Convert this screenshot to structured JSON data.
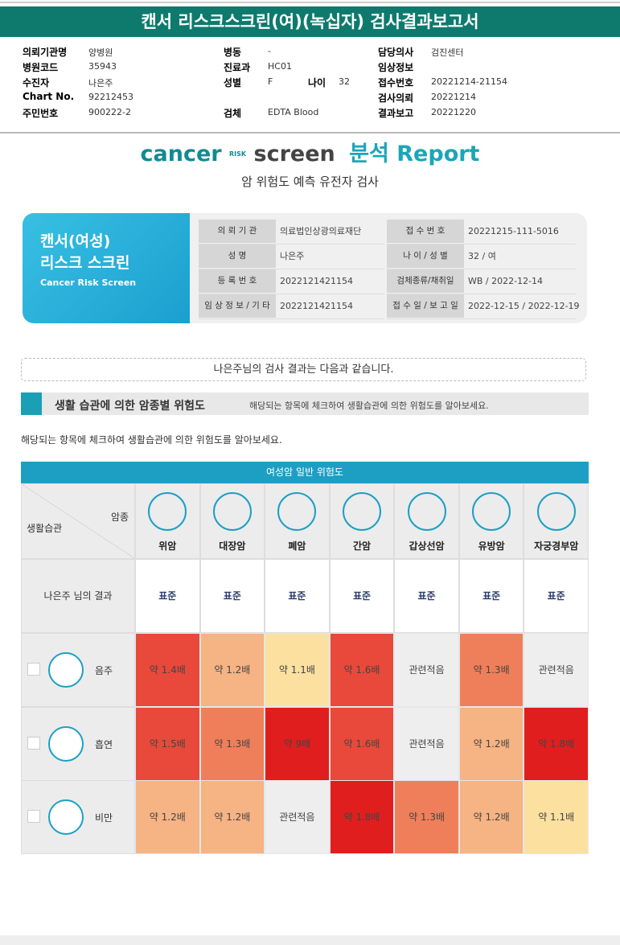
{
  "header": {
    "title": "캔서 리스크스크린(여)(녹십자) 검사결과보고서"
  },
  "info": {
    "columns": [
      [
        {
          "label": "의뢰기관명",
          "value": "양병원"
        },
        {
          "label": "병원코드",
          "value": "35943"
        },
        {
          "label": "수진자",
          "value": "나은주"
        },
        {
          "label": "Chart No.",
          "value": "92212453"
        },
        {
          "label": "주민번호",
          "value": "900222-2"
        }
      ],
      [
        {
          "label": "병동",
          "value": "-"
        },
        {
          "label": "진료과",
          "value": "HC01"
        },
        {
          "label": "성별",
          "value": "F"
        },
        {
          "label": "검체",
          "value": "EDTA Blood"
        }
      ],
      [
        {
          "label": "담당의사",
          "value": "검진센터"
        },
        {
          "label": "임상정보"
        },
        {
          "label": "접수번호",
          "value": "20221214-21154"
        },
        {
          "label": "검사의뢰",
          "value": "20221214"
        },
        {
          "label": "결과보고",
          "value": "20221220"
        }
      ]
    ],
    "age": {
      "label": "나이",
      "value": "32"
    }
  },
  "report": {
    "logo": {
      "cancer": "cancer",
      "risk": "RISK",
      "screen": "screen",
      "report": "분석 Report"
    },
    "subtitle": "암 위험도 예측 유전자 검사",
    "card": {
      "title1": "캔서(여성)",
      "title2": "리스크 스크린",
      "title3": "Cancer Risk Screen",
      "fields": [
        [
          {
            "label": "의 뢰 기 관",
            "value": "의료법인상광의료재단"
          },
          {
            "label": "접 수 번 호",
            "value": "20221215-111-5016"
          }
        ],
        [
          {
            "label": "성 명",
            "value": "나은주"
          },
          {
            "label": "나 이 / 성 별",
            "value": "32 / 여"
          }
        ],
        [
          {
            "label": "등 록 번 호",
            "value": "2022121421154"
          },
          {
            "label": "검체종류/채취일",
            "value": "WB / 2022-12-14"
          }
        ],
        [
          {
            "label": "임 상 정 보 / 기 타",
            "value": "2022121421154"
          },
          {
            "label": "접 수 일 / 보 고 일",
            "value": "2022-12-15 / 2022-12-19"
          }
        ]
      ]
    },
    "notice": "나은주님의 검사 결과는 다음과 같습니다.",
    "section": {
      "title": "생활 습관에 의한 암종별 위험도",
      "hint": "해당되는 항목에 체크하여 생활습관에 의한 위험도를 알아보세요."
    },
    "paragraph": "해당되는 항목에 체크하여 생활습관에 의한 위험도를 알아보세요."
  },
  "table": {
    "caption": "여성암 일반 위험도",
    "corner_top": "암종",
    "corner_bottom": "생활습관",
    "columns": [
      "위암",
      "대장암",
      "폐암",
      "간암",
      "갑상선암",
      "유방암",
      "자궁경부암"
    ],
    "result": {
      "label": "나은주 님의 결과",
      "values": [
        "표준",
        "표준",
        "표준",
        "표준",
        "표준",
        "표준",
        "표준"
      ]
    },
    "rows": [
      {
        "label": "음주",
        "values": [
          "약 1.4배",
          "약 1.2배",
          "약 1.1배",
          "약 1.6배",
          "관련적음",
          "약 1.3배",
          "관련적음"
        ],
        "colors": [
          "#e8493a",
          "#f6b383",
          "#fbe0a0",
          "#e8493a",
          "#eeeeee",
          "#ef7f5a",
          "#eeeeee"
        ]
      },
      {
        "label": "흡연",
        "values": [
          "약 1.5배",
          "약 1.3배",
          "약 9배",
          "약 1.6배",
          "관련적음",
          "약 1.2배",
          "약 1.8배"
        ],
        "colors": [
          "#e8493a",
          "#ef7f5a",
          "#e01e1e",
          "#e8493a",
          "#eeeeee",
          "#f6b383",
          "#e01e1e"
        ]
      },
      {
        "label": "비만",
        "values": [
          "약 1.2배",
          "약 1.2배",
          "관련적음",
          "약 1.8배",
          "약 1.3배",
          "약 1.2배",
          "약 1.1배"
        ],
        "colors": [
          "#f6b383",
          "#f6b383",
          "#eeeeee",
          "#e01e1e",
          "#ef7f5a",
          "#f6b383",
          "#fbe0a0"
        ]
      }
    ]
  }
}
